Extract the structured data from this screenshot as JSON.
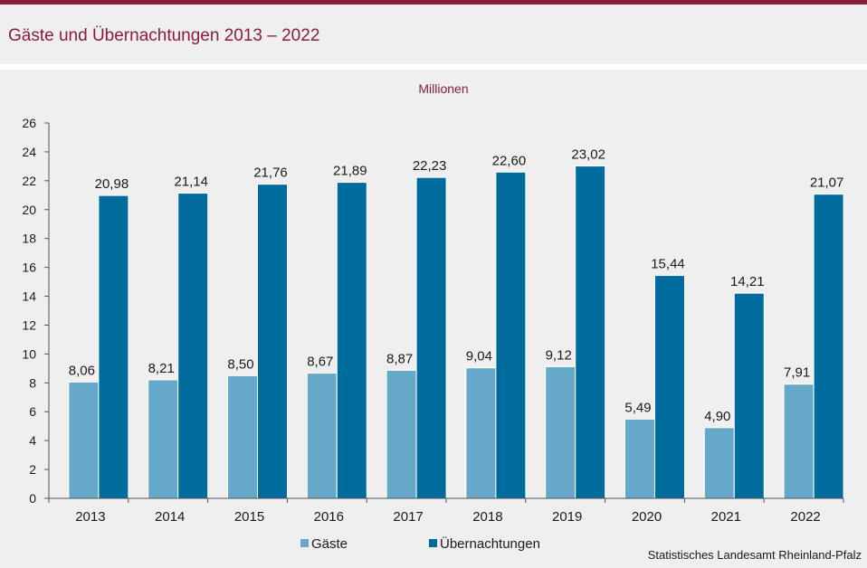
{
  "title": "Gäste und Übernachtungen 2013 – 2022",
  "source": "Statistisches Landesamt Rheinland-Pfalz",
  "colors": {
    "accent": "#8b1d3b",
    "series_gaeste": "#65a8c8",
    "series_uebernachtungen": "#006c9e",
    "background": "#eeefee"
  },
  "chart_data": {
    "type": "bar",
    "title": "Gäste und Übernachtungen 2013 – 2022",
    "unit_label": "Millionen",
    "xlabel": "",
    "ylabel": "Millionen",
    "categories": [
      "2013",
      "2014",
      "2015",
      "2016",
      "2017",
      "2018",
      "2019",
      "2020",
      "2021",
      "2022"
    ],
    "series": [
      {
        "name": "Gäste",
        "values": [
          8.06,
          8.21,
          8.5,
          8.67,
          8.87,
          9.04,
          9.12,
          5.49,
          4.9,
          7.91
        ],
        "labels": [
          "8,06",
          "8,21",
          "8,50",
          "8,67",
          "8,87",
          "9,04",
          "9,12",
          "5,49",
          "4,90",
          "7,91"
        ]
      },
      {
        "name": "Übernachtungen",
        "values": [
          20.98,
          21.14,
          21.76,
          21.89,
          22.23,
          22.6,
          23.02,
          15.44,
          14.21,
          21.07
        ],
        "labels": [
          "20,98",
          "21,14",
          "21,76",
          "21,89",
          "22,23",
          "22,60",
          "23,02",
          "15,44",
          "14,21",
          "21,07"
        ]
      }
    ],
    "ylim": [
      0,
      26
    ],
    "yticks": [
      0,
      2,
      4,
      6,
      8,
      10,
      12,
      14,
      16,
      18,
      20,
      22,
      24,
      26
    ],
    "grid": false,
    "legend": "bottom-center"
  }
}
